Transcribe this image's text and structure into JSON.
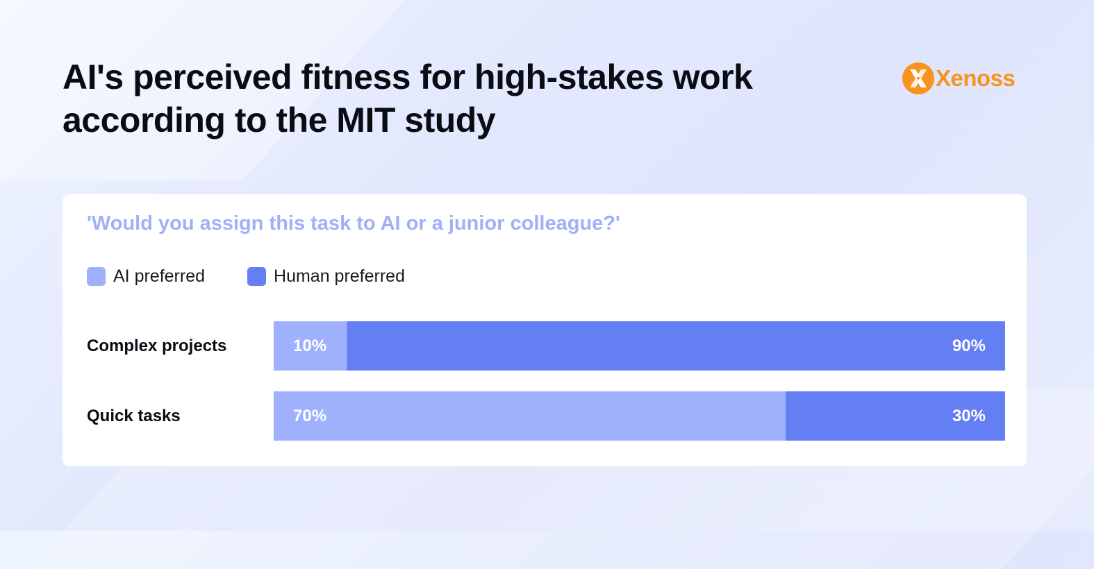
{
  "header": {
    "title": "AI's perceived fitness for high-stakes work according to the MIT study",
    "brand": "Xenoss"
  },
  "colors": {
    "ai": "#9fb0fd",
    "human": "#637ff3",
    "brand": "#f7931e"
  },
  "chart_data": {
    "type": "bar",
    "orientation": "horizontal",
    "stacked": true,
    "percent_scale": true,
    "title": "'Would you assign this task to AI or a junior colleague?'",
    "categories": [
      "Complex projects",
      "Quick tasks"
    ],
    "series": [
      {
        "name": "AI preferred",
        "values": [
          10,
          70
        ],
        "labels": [
          "10%",
          "70%"
        ]
      },
      {
        "name": "Human preferred",
        "values": [
          90,
          30
        ],
        "labels": [
          "90%",
          "30%"
        ]
      }
    ],
    "xlim": [
      0,
      100
    ],
    "grid": false,
    "legend_position": "top-left"
  }
}
